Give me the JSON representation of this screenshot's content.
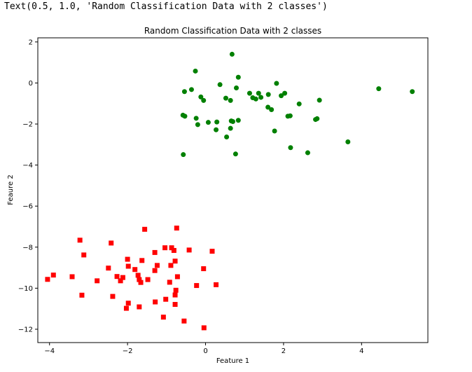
{
  "output_text": "Text(0.5, 1.0, 'Random Classification Data with 2 classes')",
  "chart_data": {
    "type": "scatter",
    "title": "Random Classification Data with 2 classes",
    "xlabel": "Feature 1",
    "ylabel": "Feaure 2",
    "xlim": [
      -4.3,
      5.7
    ],
    "ylim": [
      -12.65,
      2.2
    ],
    "xticks": [
      -4,
      -2,
      0,
      2,
      4
    ],
    "yticks": [
      2,
      0,
      -2,
      -4,
      -6,
      -8,
      -10,
      -12
    ],
    "grid": false,
    "series": [
      {
        "color": "#008000",
        "marker": "circle",
        "x": [
          0.68,
          -0.26,
          0.84,
          -0.54,
          0.37,
          0.79,
          -0.36,
          1.13,
          1.36,
          1.82,
          1.61,
          2.03,
          0.52,
          0.64,
          1.21,
          1.29,
          1.42,
          1.94,
          2.92,
          2.4,
          -0.12,
          -0.05,
          -0.53,
          -0.58,
          1.6,
          1.69,
          2.11,
          2.17,
          0.84,
          0.7,
          0.64,
          0.29,
          -0.24,
          0.07,
          0.27,
          -0.2,
          0.66,
          0.54,
          1.77,
          2.82,
          2.86,
          2.18,
          0.77,
          -0.57,
          2.62,
          3.65,
          4.44,
          5.3
        ],
        "y": [
          1.4,
          0.58,
          0.28,
          -0.42,
          -0.08,
          -0.24,
          -0.32,
          -0.5,
          -0.5,
          -0.02,
          -0.56,
          -0.5,
          -0.74,
          -0.85,
          -0.72,
          -0.78,
          -0.7,
          -0.62,
          -0.84,
          -1.02,
          -0.68,
          -0.85,
          -1.62,
          -1.57,
          -1.18,
          -1.3,
          -1.62,
          -1.6,
          -1.82,
          -1.88,
          -2.21,
          -1.9,
          -1.72,
          -1.92,
          -2.28,
          -2.03,
          -1.85,
          -2.63,
          -2.34,
          -1.78,
          -1.74,
          -3.15,
          -3.46,
          -3.49,
          -3.4,
          -2.87,
          -0.28,
          -0.42
        ]
      },
      {
        "color": "#ff0000",
        "marker": "square",
        "x": [
          -1.56,
          -0.74,
          -3.22,
          -2.42,
          -1.04,
          -1.3,
          -0.87,
          -0.81,
          -0.42,
          0.17,
          -3.12,
          -2.0,
          -1.63,
          -0.78,
          -2.49,
          -1.98,
          -1.24,
          -0.89,
          -1.81,
          -1.3,
          -0.05,
          -3.9,
          -3.42,
          -2.78,
          -2.18,
          -2.27,
          -2.12,
          -1.73,
          -1.7,
          -1.48,
          -1.66,
          -0.72,
          -0.92,
          -0.23,
          0.27,
          -4.05,
          -2.38,
          -3.17,
          -1.29,
          -0.76,
          -0.78,
          -1.02,
          -1.98,
          -1.7,
          -0.78,
          -2.03,
          -1.08,
          -0.55,
          -0.04
        ],
        "y": [
          -7.13,
          -7.07,
          -7.66,
          -7.8,
          -8.03,
          -8.26,
          -8.03,
          -8.16,
          -8.14,
          -8.2,
          -8.38,
          -8.59,
          -8.65,
          -8.68,
          -9.02,
          -8.93,
          -8.89,
          -8.89,
          -9.09,
          -9.14,
          -9.05,
          -9.36,
          -9.44,
          -9.64,
          -9.64,
          -9.43,
          -9.48,
          -9.37,
          -9.58,
          -9.58,
          -9.72,
          -9.44,
          -9.71,
          -9.87,
          -9.83,
          -9.57,
          -10.4,
          -10.34,
          -10.67,
          -10.1,
          -10.33,
          -10.54,
          -10.73,
          -10.91,
          -10.79,
          -10.98,
          -11.41,
          -11.6,
          -11.93
        ]
      }
    ]
  }
}
